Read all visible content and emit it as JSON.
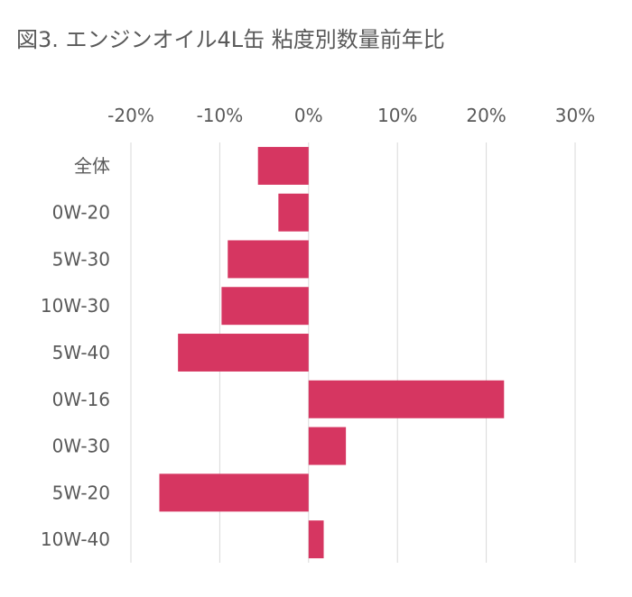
{
  "title": "図3. エンジンオイル4L缶 粘度別数量前年比",
  "colors": {
    "bar": "#D63661",
    "grid": "#D9D9D9",
    "text": "#595959"
  },
  "chart_data": {
    "type": "bar",
    "orientation": "horizontal",
    "categories": [
      "全体",
      "0W-20",
      "5W-30",
      "10W-30",
      "5W-40",
      "0W-16",
      "0W-30",
      "5W-20",
      "10W-40"
    ],
    "series": [
      {
        "values": [
          -5.7,
          -3.4,
          -9.1,
          -9.8,
          -14.7,
          22.0,
          4.2,
          -16.8,
          1.7
        ]
      }
    ],
    "xlim": [
      -20,
      30
    ],
    "xticks": [
      -20,
      -10,
      0,
      10,
      20,
      30
    ],
    "xtick_labels": [
      "-20%",
      "-10%",
      "0%",
      "10%",
      "20%",
      "30%"
    ],
    "x_axis_position": "top",
    "grid": true
  }
}
